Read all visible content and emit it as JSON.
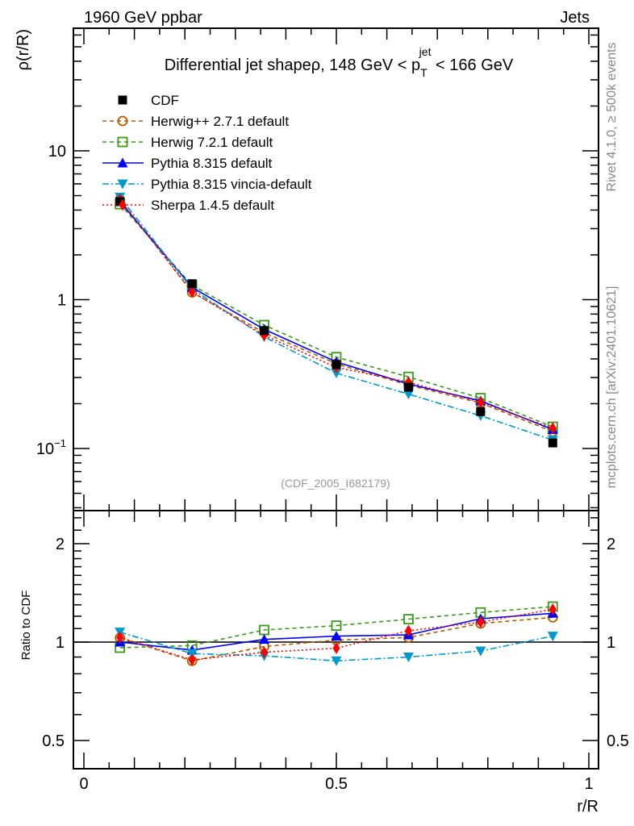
{
  "header": {
    "left": "1960 GeV ppbar",
    "right": "Jets"
  },
  "side_text": {
    "rivet": "Rivet 4.1.0, ≥ 500k events",
    "mcplots": "mcplots.cern.ch [arXiv:2401.10621]"
  },
  "watermark": "(CDF_2005_I682179)",
  "chart_data": [
    {
      "type": "line",
      "title": "Differential jet shapeρ, 148 GeV < p",
      "title_sub": "T",
      "title_sup": "jet",
      "title_tail": " < 166 GeV",
      "xlabel": "r/R",
      "ylabel": "ρ(r/R)",
      "yscale": "log",
      "ylim": [
        0.038,
        67
      ],
      "xlim": [
        -0.02,
        1.02
      ],
      "yticks": [
        {
          "v": 10,
          "label": "10"
        },
        {
          "v": 1,
          "label": "1"
        },
        {
          "v": 0.1,
          "label": "10",
          "sup": "−1"
        }
      ],
      "legend_position": "top-left",
      "x": [
        0.0714,
        0.2143,
        0.3571,
        0.5,
        0.6429,
        0.7857,
        0.9286
      ],
      "series": [
        {
          "name": "CDF",
          "color": "#000000",
          "marker": "square-filled",
          "line": "none",
          "values": [
            4.56,
            1.28,
            0.62,
            0.366,
            0.258,
            0.177,
            0.109
          ]
        },
        {
          "name": "Herwig++ 2.7.1 default",
          "color": "#b35c00",
          "marker": "circle-open",
          "line": "dashed",
          "values": [
            4.7,
            1.12,
            0.6,
            0.371,
            0.267,
            0.202,
            0.13
          ]
        },
        {
          "name": "Herwig 7.2.1 default",
          "color": "#3a9a1a",
          "marker": "square-open",
          "line": "dashed",
          "values": [
            4.38,
            1.25,
            0.675,
            0.411,
            0.303,
            0.218,
            0.14
          ]
        },
        {
          "name": "Pythia 8.315 default",
          "color": "#0000ff",
          "marker": "triangle-up",
          "line": "solid",
          "values": [
            4.56,
            1.21,
            0.632,
            0.382,
            0.271,
            0.209,
            0.134
          ]
        },
        {
          "name": "Pythia 8.315 vincia-default",
          "color": "#0099cc",
          "marker": "triangle-down",
          "line": "dashdot",
          "values": [
            4.89,
            1.18,
            0.563,
            0.321,
            0.232,
            0.166,
            0.114
          ]
        },
        {
          "name": "Sherpa 1.4.5 default",
          "color": "#ff0000",
          "marker": "diamond",
          "line": "dotted",
          "values": [
            4.71,
            1.13,
            0.577,
            0.351,
            0.279,
            0.204,
            0.137
          ]
        }
      ]
    },
    {
      "type": "line",
      "ylabel": "Ratio to CDF",
      "xlabel": "r/R",
      "yscale": "log",
      "ylim": [
        0.41,
        2.49
      ],
      "reference": 1,
      "yticks": [
        {
          "v": 2,
          "label": "2"
        },
        {
          "v": 1,
          "label": "1"
        },
        {
          "v": 0.5,
          "label": "0.5"
        }
      ],
      "xticks": [
        {
          "v": 0,
          "label": "0"
        },
        {
          "v": 0.5,
          "label": "0.5"
        },
        {
          "v": 1,
          "label": "1"
        }
      ],
      "x": [
        0.0714,
        0.2143,
        0.3571,
        0.5,
        0.6429,
        0.7857,
        0.9286
      ],
      "series": [
        {
          "name": "Herwig++ 2.7.1 default",
          "values": [
            1.03,
            0.876,
            0.969,
            1.014,
            1.033,
            1.14,
            1.19
          ]
        },
        {
          "name": "Herwig 7.2.1 default",
          "values": [
            0.961,
            0.976,
            1.089,
            1.123,
            1.175,
            1.232,
            1.284
          ]
        },
        {
          "name": "Pythia 8.315 default",
          "values": [
            1.0,
            0.945,
            1.019,
            1.043,
            1.052,
            1.179,
            1.225
          ]
        },
        {
          "name": "Pythia 8.315 vincia-default",
          "values": [
            1.073,
            0.922,
            0.908,
            0.876,
            0.9,
            0.939,
            1.043
          ]
        },
        {
          "name": "Sherpa 1.4.5 default",
          "values": [
            1.033,
            0.882,
            0.931,
            0.958,
            1.083,
            1.151,
            1.26
          ]
        }
      ]
    }
  ]
}
